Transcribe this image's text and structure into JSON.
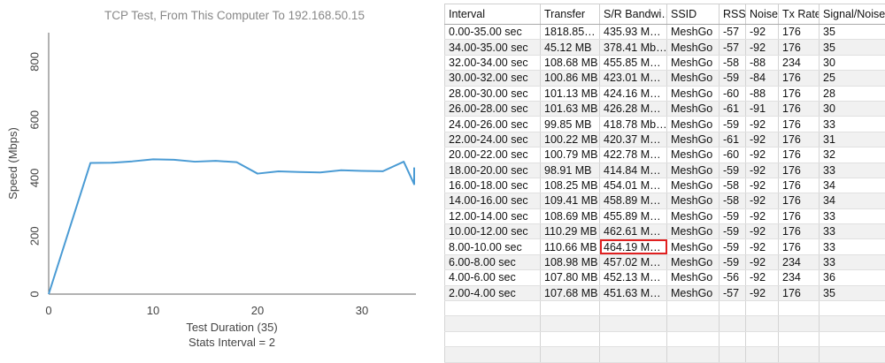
{
  "chart_data": {
    "type": "line",
    "title": "TCP Test,  From This Computer To 192.168.50.15",
    "x_label": "Test Duration (35)",
    "x_label_note": "Stats Interval = 2",
    "y_label": "Speed (Mbps)",
    "x": [
      0,
      4,
      6,
      8,
      10,
      12,
      14,
      16,
      18,
      20,
      22,
      24,
      26,
      28,
      30,
      32,
      34,
      35,
      35
    ],
    "values": [
      0,
      451.63,
      452.13,
      457.02,
      464.19,
      462.61,
      455.89,
      458.89,
      454.01,
      414.84,
      422.78,
      420.37,
      418.78,
      426.28,
      424.16,
      423.01,
      455.85,
      378.41,
      435.93
    ],
    "color": "#4a9bd4",
    "xlim": [
      0,
      35
    ],
    "ylim": [
      0,
      900
    ],
    "xticks": [
      0,
      10,
      20,
      30
    ],
    "yticks": [
      0,
      200,
      400,
      600,
      800
    ],
    "grid": false
  },
  "table": {
    "columns": [
      "Interval",
      "Transfer",
      "S/R Bandwi…",
      "SSID",
      "RSSI",
      "Noise",
      "Tx Rate",
      "Signal/Noise"
    ],
    "rows": [
      [
        "0.00-35.00 sec",
        "1818.85…",
        "435.93 M…",
        "MeshGo",
        "-57",
        "-92",
        "176",
        "35"
      ],
      [
        "34.00-35.00 sec",
        "45.12 MB",
        "378.41 Mb…",
        "MeshGo",
        "-57",
        "-92",
        "176",
        "35"
      ],
      [
        "32.00-34.00 sec",
        "108.68 MB",
        "455.85 M…",
        "MeshGo",
        "-58",
        "-88",
        "234",
        "30"
      ],
      [
        "30.00-32.00 sec",
        "100.86 MB",
        "423.01 M…",
        "MeshGo",
        "-59",
        "-84",
        "176",
        "25"
      ],
      [
        "28.00-30.00 sec",
        "101.13 MB",
        "424.16 M…",
        "MeshGo",
        "-60",
        "-88",
        "176",
        "28"
      ],
      [
        "26.00-28.00 sec",
        "101.63 MB",
        "426.28 M…",
        "MeshGo",
        "-61",
        "-91",
        "176",
        "30"
      ],
      [
        "24.00-26.00 sec",
        "99.85 MB",
        "418.78 Mb…",
        "MeshGo",
        "-59",
        "-92",
        "176",
        "33"
      ],
      [
        "22.00-24.00 sec",
        "100.22 MB",
        "420.37 M…",
        "MeshGo",
        "-61",
        "-92",
        "176",
        "31"
      ],
      [
        "20.00-22.00 sec",
        "100.79 MB",
        "422.78 M…",
        "MeshGo",
        "-60",
        "-92",
        "176",
        "32"
      ],
      [
        "18.00-20.00 sec",
        "98.91 MB",
        "414.84 M…",
        "MeshGo",
        "-59",
        "-92",
        "176",
        "33"
      ],
      [
        "16.00-18.00 sec",
        "108.25 MB",
        "454.01 M…",
        "MeshGo",
        "-58",
        "-92",
        "176",
        "34"
      ],
      [
        "14.00-16.00 sec",
        "109.41 MB",
        "458.89 M…",
        "MeshGo",
        "-58",
        "-92",
        "176",
        "34"
      ],
      [
        "12.00-14.00 sec",
        "108.69 MB",
        "455.89 M…",
        "MeshGo",
        "-59",
        "-92",
        "176",
        "33"
      ],
      [
        "10.00-12.00 sec",
        "110.29 MB",
        "462.61 M…",
        "MeshGo",
        "-59",
        "-92",
        "176",
        "33"
      ],
      [
        "8.00-10.00 sec",
        "110.66 MB",
        "464.19 M…",
        "MeshGo",
        "-59",
        "-92",
        "176",
        "33"
      ],
      [
        "6.00-8.00 sec",
        "108.98 MB",
        "457.02 M…",
        "MeshGo",
        "-59",
        "-92",
        "234",
        "33"
      ],
      [
        "4.00-6.00 sec",
        "107.80 MB",
        "452.13 M…",
        "MeshGo",
        "-56",
        "-92",
        "234",
        "36"
      ],
      [
        "2.00-4.00 sec",
        "107.68 MB",
        "451.63 M…",
        "MeshGo",
        "-57",
        "-92",
        "176",
        "35"
      ]
    ]
  }
}
